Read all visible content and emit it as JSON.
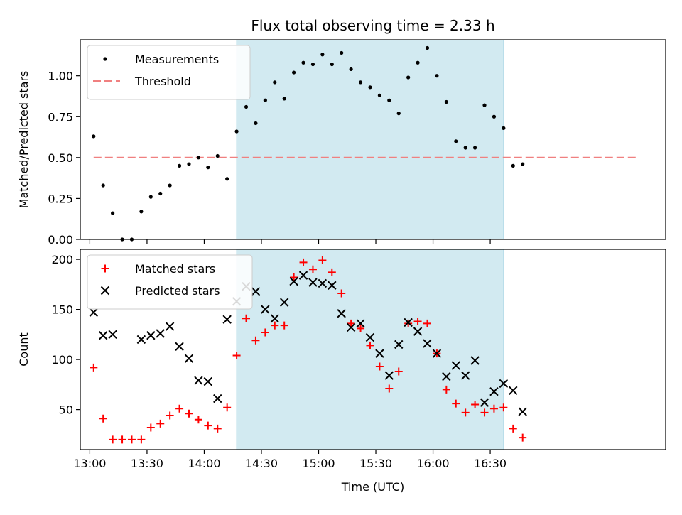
{
  "chart_data": [
    {
      "type": "scatter",
      "title": "Flux total observing time = 2.33 h",
      "xlabel": "",
      "ylabel": "Matched/Predicted stars",
      "ylim": [
        0,
        1.22
      ],
      "yticks": [
        0.0,
        0.25,
        0.5,
        0.75,
        1.0
      ],
      "ytick_labels": [
        "0.00",
        "0.25",
        "0.50",
        "0.75",
        "1.00"
      ],
      "xlim": [
        "12:55",
        "18:02"
      ],
      "grid": false,
      "legend_position": "top-left",
      "shaded_span": {
        "x_start": "14:17",
        "x_end": "16:37",
        "color": "#add8e6"
      },
      "threshold": {
        "name": "Threshold",
        "value": 0.5,
        "x_start": "13:02",
        "x_end": "17:47",
        "color": "#f08080"
      },
      "series": [
        {
          "name": "Measurements",
          "color": "#000000",
          "x": [
            "13:02",
            "13:07",
            "13:12",
            "13:17",
            "13:22",
            "13:27",
            "13:32",
            "13:37",
            "13:42",
            "13:47",
            "13:52",
            "13:57",
            "14:02",
            "14:07",
            "14:12",
            "14:17",
            "14:22",
            "14:27",
            "14:32",
            "14:37",
            "14:42",
            "14:47",
            "14:52",
            "14:57",
            "15:02",
            "15:07",
            "15:12",
            "15:17",
            "15:22",
            "15:27",
            "15:32",
            "15:37",
            "15:42",
            "15:47",
            "15:52",
            "15:57",
            "16:02",
            "16:07",
            "16:12",
            "16:17",
            "16:22",
            "16:27",
            "16:32",
            "16:37",
            "16:42",
            "16:47"
          ],
          "y": [
            0.63,
            0.33,
            0.16,
            0.0,
            0.0,
            0.17,
            0.26,
            0.28,
            0.33,
            0.45,
            0.46,
            0.5,
            0.44,
            0.51,
            0.37,
            0.66,
            0.81,
            0.71,
            0.85,
            0.96,
            0.86,
            1.02,
            1.08,
            1.07,
            1.13,
            1.07,
            1.14,
            1.04,
            0.96,
            0.93,
            0.88,
            0.85,
            0.77,
            0.99,
            1.08,
            1.17,
            1.0,
            0.84,
            0.6,
            0.56,
            0.56,
            0.82,
            0.75,
            0.68,
            0.45,
            0.46
          ]
        }
      ]
    },
    {
      "type": "scatter",
      "title": "",
      "xlabel": "Time (UTC)",
      "ylabel": "Count",
      "ylim": [
        10,
        210
      ],
      "yticks": [
        50,
        100,
        150,
        200
      ],
      "ytick_labels": [
        "50",
        "100",
        "150",
        "200"
      ],
      "xlim": [
        "12:55",
        "18:02"
      ],
      "xticks": [
        "13:00",
        "13:30",
        "14:00",
        "14:30",
        "15:00",
        "15:30",
        "16:00",
        "16:30"
      ],
      "xtick_labels": [
        "13:00",
        "13:30",
        "14:00",
        "14:30",
        "15:00",
        "15:30",
        "16:00",
        "16:30"
      ],
      "grid": false,
      "legend_position": "top-left",
      "shaded_span": {
        "x_start": "14:17",
        "x_end": "16:37",
        "color": "#add8e6"
      },
      "series": [
        {
          "name": "Matched stars",
          "marker": "plus",
          "color": "#ff0000",
          "x": [
            "13:02",
            "13:07",
            "13:12",
            "13:17",
            "13:22",
            "13:27",
            "13:32",
            "13:37",
            "13:42",
            "13:47",
            "13:52",
            "13:57",
            "14:02",
            "14:07",
            "14:12",
            "14:17",
            "14:22",
            "14:27",
            "14:32",
            "14:37",
            "14:42",
            "14:47",
            "14:52",
            "14:57",
            "15:02",
            "15:07",
            "15:12",
            "15:17",
            "15:22",
            "15:27",
            "15:32",
            "15:37",
            "15:42",
            "15:47",
            "15:52",
            "15:57",
            "16:02",
            "16:07",
            "16:12",
            "16:17",
            "16:22",
            "16:27",
            "16:32",
            "16:37",
            "16:42",
            "16:47"
          ],
          "y": [
            92,
            41,
            20,
            20,
            20,
            20,
            32,
            36,
            44,
            51,
            46,
            40,
            34,
            31,
            52,
            104,
            141,
            119,
            127,
            134,
            134,
            182,
            197,
            190,
            199,
            187,
            166,
            136,
            131,
            114,
            93,
            71,
            88,
            136,
            138,
            136,
            106,
            70,
            56,
            47,
            55,
            47,
            51,
            52,
            31,
            22
          ]
        },
        {
          "name": "Predicted stars",
          "marker": "x",
          "color": "#000000",
          "x": [
            "13:02",
            "13:07",
            "13:12",
            "13:27",
            "13:32",
            "13:37",
            "13:42",
            "13:47",
            "13:52",
            "13:57",
            "14:02",
            "14:07",
            "14:12",
            "14:17",
            "14:22",
            "14:27",
            "14:32",
            "14:37",
            "14:42",
            "14:47",
            "14:52",
            "14:57",
            "15:02",
            "15:07",
            "15:12",
            "15:17",
            "15:22",
            "15:27",
            "15:32",
            "15:37",
            "15:42",
            "15:47",
            "15:52",
            "15:57",
            "16:02",
            "16:07",
            "16:12",
            "16:17",
            "16:22",
            "16:27",
            "16:32",
            "16:37",
            "16:42",
            "16:47"
          ],
          "y": [
            147,
            124,
            125,
            120,
            124,
            126,
            133,
            113,
            101,
            79,
            78,
            61,
            140,
            158,
            173,
            168,
            150,
            141,
            157,
            178,
            184,
            177,
            176,
            174,
            146,
            132,
            136,
            122,
            106,
            84,
            115,
            137,
            128,
            116,
            106,
            83,
            94,
            84,
            99,
            57,
            68,
            76,
            69,
            48
          ]
        }
      ]
    }
  ]
}
